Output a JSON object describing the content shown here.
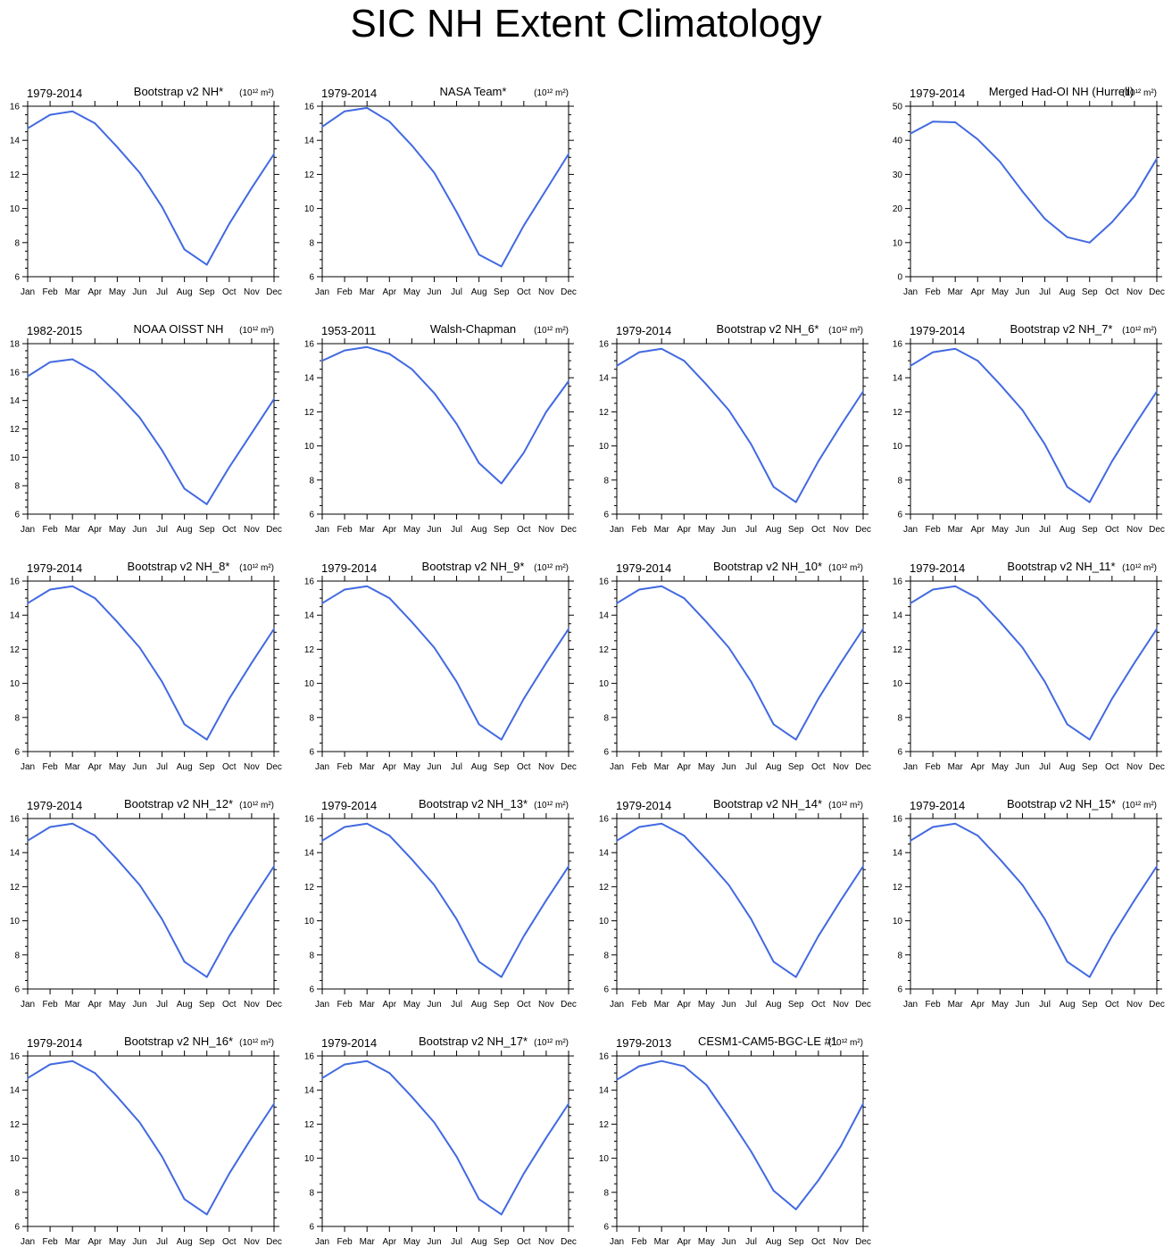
{
  "title": "SIC NH Extent Climatology",
  "style": {
    "line_color": "#4169e1",
    "axis_color": "#000000"
  },
  "chart_data": [
    {
      "type": "line",
      "left_label": "1979-2014",
      "center_label": "Bootstrap v2 NH*",
      "units_label": "(10¹² m²)",
      "categories": [
        "Jan",
        "Feb",
        "Mar",
        "Apr",
        "May",
        "Jun",
        "Jul",
        "Aug",
        "Sep",
        "Oct",
        "Nov",
        "Dec"
      ],
      "ylim": [
        6,
        16
      ],
      "yticks": [
        6,
        8,
        10,
        12,
        14,
        16
      ],
      "series": [
        {
          "values": [
            14.7,
            15.5,
            15.7,
            15.0,
            13.6,
            12.1,
            10.1,
            7.6,
            6.7,
            9.1,
            11.2,
            13.2
          ]
        }
      ]
    },
    {
      "type": "line",
      "left_label": "1979-2014",
      "center_label": "NASA Team*",
      "units_label": "(10¹² m²)",
      "categories": [
        "Jan",
        "Feb",
        "Mar",
        "Apr",
        "May",
        "Jun",
        "Jul",
        "Aug",
        "Sep",
        "Oct",
        "Nov",
        "Dec"
      ],
      "ylim": [
        6,
        16
      ],
      "yticks": [
        6,
        8,
        10,
        12,
        14,
        16
      ],
      "series": [
        {
          "values": [
            14.8,
            15.7,
            15.9,
            15.1,
            13.7,
            12.1,
            9.8,
            7.3,
            6.6,
            9.0,
            11.1,
            13.2
          ]
        }
      ]
    },
    {
      "type": "line",
      "left_label": "1979-2014",
      "center_label": "Merged Had-OI NH (Hurrell)",
      "units_label": "(10¹² m²)",
      "categories": [
        "Jan",
        "Feb",
        "Mar",
        "Apr",
        "May",
        "Jun",
        "Jul",
        "Aug",
        "Sep",
        "Oct",
        "Nov",
        "Dec"
      ],
      "ylim": [
        0,
        50
      ],
      "yticks": [
        0,
        10,
        20,
        30,
        40,
        50
      ],
      "series": [
        {
          "values": [
            42.0,
            45.5,
            45.3,
            40.3,
            33.7,
            25.0,
            17.0,
            11.6,
            10.0,
            16.0,
            23.6,
            34.6
          ]
        }
      ]
    },
    {
      "type": "line",
      "left_label": "1982-2015",
      "center_label": "NOAA OISST NH",
      "units_label": "(10¹² m²)",
      "categories": [
        "Jan",
        "Feb",
        "Mar",
        "Apr",
        "May",
        "Jun",
        "Jul",
        "Aug",
        "Sep",
        "Oct",
        "Nov",
        "Dec"
      ],
      "ylim": [
        6,
        18
      ],
      "yticks": [
        6,
        8,
        10,
        12,
        14,
        16,
        18
      ],
      "series": [
        {
          "values": [
            15.7,
            16.7,
            16.9,
            16.0,
            14.5,
            12.8,
            10.5,
            7.8,
            6.7,
            9.3,
            11.7,
            14.1
          ]
        }
      ]
    },
    {
      "type": "line",
      "left_label": "1953-2011",
      "center_label": "Walsh-Chapman",
      "units_label": "(10¹² m²)",
      "categories": [
        "Jan",
        "Feb",
        "Mar",
        "Apr",
        "May",
        "Jun",
        "Jul",
        "Aug",
        "Sep",
        "Oct",
        "Nov",
        "Dec"
      ],
      "ylim": [
        6,
        16
      ],
      "yticks": [
        6,
        8,
        10,
        12,
        14,
        16
      ],
      "series": [
        {
          "values": [
            15.0,
            15.6,
            15.8,
            15.4,
            14.5,
            13.1,
            11.3,
            9.0,
            7.8,
            9.6,
            12.0,
            13.8
          ]
        }
      ]
    },
    {
      "type": "line",
      "left_label": "1979-2014",
      "center_label": "Bootstrap v2 NH_6*",
      "units_label": "(10¹² m²)",
      "categories": [
        "Jan",
        "Feb",
        "Mar",
        "Apr",
        "May",
        "Jun",
        "Jul",
        "Aug",
        "Sep",
        "Oct",
        "Nov",
        "Dec"
      ],
      "ylim": [
        6,
        16
      ],
      "yticks": [
        6,
        8,
        10,
        12,
        14,
        16
      ],
      "series": [
        {
          "values": [
            14.7,
            15.5,
            15.7,
            15.0,
            13.6,
            12.1,
            10.1,
            7.6,
            6.7,
            9.1,
            11.2,
            13.2
          ]
        }
      ]
    },
    {
      "type": "line",
      "left_label": "1979-2014",
      "center_label": "Bootstrap v2 NH_7*",
      "units_label": "(10¹² m²)",
      "categories": [
        "Jan",
        "Feb",
        "Mar",
        "Apr",
        "May",
        "Jun",
        "Jul",
        "Aug",
        "Sep",
        "Oct",
        "Nov",
        "Dec"
      ],
      "ylim": [
        6,
        16
      ],
      "yticks": [
        6,
        8,
        10,
        12,
        14,
        16
      ],
      "series": [
        {
          "values": [
            14.7,
            15.5,
            15.7,
            15.0,
            13.6,
            12.1,
            10.1,
            7.6,
            6.7,
            9.1,
            11.2,
            13.2
          ]
        }
      ]
    },
    {
      "type": "line",
      "left_label": "1979-2014",
      "center_label": "Bootstrap v2 NH_8*",
      "units_label": "(10¹² m²)",
      "categories": [
        "Jan",
        "Feb",
        "Mar",
        "Apr",
        "May",
        "Jun",
        "Jul",
        "Aug",
        "Sep",
        "Oct",
        "Nov",
        "Dec"
      ],
      "ylim": [
        6,
        16
      ],
      "yticks": [
        6,
        8,
        10,
        12,
        14,
        16
      ],
      "series": [
        {
          "values": [
            14.7,
            15.5,
            15.7,
            15.0,
            13.6,
            12.1,
            10.1,
            7.6,
            6.7,
            9.1,
            11.2,
            13.2
          ]
        }
      ]
    },
    {
      "type": "line",
      "left_label": "1979-2014",
      "center_label": "Bootstrap v2 NH_9*",
      "units_label": "(10¹² m²)",
      "categories": [
        "Jan",
        "Feb",
        "Mar",
        "Apr",
        "May",
        "Jun",
        "Jul",
        "Aug",
        "Sep",
        "Oct",
        "Nov",
        "Dec"
      ],
      "ylim": [
        6,
        16
      ],
      "yticks": [
        6,
        8,
        10,
        12,
        14,
        16
      ],
      "series": [
        {
          "values": [
            14.7,
            15.5,
            15.7,
            15.0,
            13.6,
            12.1,
            10.1,
            7.6,
            6.7,
            9.1,
            11.2,
            13.2
          ]
        }
      ]
    },
    {
      "type": "line",
      "left_label": "1979-2014",
      "center_label": "Bootstrap v2 NH_10*",
      "units_label": "(10¹² m²)",
      "categories": [
        "Jan",
        "Feb",
        "Mar",
        "Apr",
        "May",
        "Jun",
        "Jul",
        "Aug",
        "Sep",
        "Oct",
        "Nov",
        "Dec"
      ],
      "ylim": [
        6,
        16
      ],
      "yticks": [
        6,
        8,
        10,
        12,
        14,
        16
      ],
      "series": [
        {
          "values": [
            14.7,
            15.5,
            15.7,
            15.0,
            13.6,
            12.1,
            10.1,
            7.6,
            6.7,
            9.1,
            11.2,
            13.2
          ]
        }
      ]
    },
    {
      "type": "line",
      "left_label": "1979-2014",
      "center_label": "Bootstrap v2 NH_11*",
      "units_label": "(10¹² m²)",
      "categories": [
        "Jan",
        "Feb",
        "Mar",
        "Apr",
        "May",
        "Jun",
        "Jul",
        "Aug",
        "Sep",
        "Oct",
        "Nov",
        "Dec"
      ],
      "ylim": [
        6,
        16
      ],
      "yticks": [
        6,
        8,
        10,
        12,
        14,
        16
      ],
      "series": [
        {
          "values": [
            14.7,
            15.5,
            15.7,
            15.0,
            13.6,
            12.1,
            10.1,
            7.6,
            6.7,
            9.1,
            11.2,
            13.2
          ]
        }
      ]
    },
    {
      "type": "line",
      "left_label": "1979-2014",
      "center_label": "Bootstrap v2 NH_12*",
      "units_label": "(10¹² m²)",
      "categories": [
        "Jan",
        "Feb",
        "Mar",
        "Apr",
        "May",
        "Jun",
        "Jul",
        "Aug",
        "Sep",
        "Oct",
        "Nov",
        "Dec"
      ],
      "ylim": [
        6,
        16
      ],
      "yticks": [
        6,
        8,
        10,
        12,
        14,
        16
      ],
      "series": [
        {
          "values": [
            14.7,
            15.5,
            15.7,
            15.0,
            13.6,
            12.1,
            10.1,
            7.6,
            6.7,
            9.1,
            11.2,
            13.2
          ]
        }
      ]
    },
    {
      "type": "line",
      "left_label": "1979-2014",
      "center_label": "Bootstrap v2 NH_13*",
      "units_label": "(10¹² m²)",
      "categories": [
        "Jan",
        "Feb",
        "Mar",
        "Apr",
        "May",
        "Jun",
        "Jul",
        "Aug",
        "Sep",
        "Oct",
        "Nov",
        "Dec"
      ],
      "ylim": [
        6,
        16
      ],
      "yticks": [
        6,
        8,
        10,
        12,
        14,
        16
      ],
      "series": [
        {
          "values": [
            14.7,
            15.5,
            15.7,
            15.0,
            13.6,
            12.1,
            10.1,
            7.6,
            6.7,
            9.1,
            11.2,
            13.2
          ]
        }
      ]
    },
    {
      "type": "line",
      "left_label": "1979-2014",
      "center_label": "Bootstrap v2 NH_14*",
      "units_label": "(10¹² m²)",
      "categories": [
        "Jan",
        "Feb",
        "Mar",
        "Apr",
        "May",
        "Jun",
        "Jul",
        "Aug",
        "Sep",
        "Oct",
        "Nov",
        "Dec"
      ],
      "ylim": [
        6,
        16
      ],
      "yticks": [
        6,
        8,
        10,
        12,
        14,
        16
      ],
      "series": [
        {
          "values": [
            14.7,
            15.5,
            15.7,
            15.0,
            13.6,
            12.1,
            10.1,
            7.6,
            6.7,
            9.1,
            11.2,
            13.2
          ]
        }
      ]
    },
    {
      "type": "line",
      "left_label": "1979-2014",
      "center_label": "Bootstrap v2 NH_15*",
      "units_label": "(10¹² m²)",
      "categories": [
        "Jan",
        "Feb",
        "Mar",
        "Apr",
        "May",
        "Jun",
        "Jul",
        "Aug",
        "Sep",
        "Oct",
        "Nov",
        "Dec"
      ],
      "ylim": [
        6,
        16
      ],
      "yticks": [
        6,
        8,
        10,
        12,
        14,
        16
      ],
      "series": [
        {
          "values": [
            14.7,
            15.5,
            15.7,
            15.0,
            13.6,
            12.1,
            10.1,
            7.6,
            6.7,
            9.1,
            11.2,
            13.2
          ]
        }
      ]
    },
    {
      "type": "line",
      "left_label": "1979-2014",
      "center_label": "Bootstrap v2 NH_16*",
      "units_label": "(10¹² m²)",
      "categories": [
        "Jan",
        "Feb",
        "Mar",
        "Apr",
        "May",
        "Jun",
        "Jul",
        "Aug",
        "Sep",
        "Oct",
        "Nov",
        "Dec"
      ],
      "ylim": [
        6,
        16
      ],
      "yticks": [
        6,
        8,
        10,
        12,
        14,
        16
      ],
      "series": [
        {
          "values": [
            14.7,
            15.5,
            15.7,
            15.0,
            13.6,
            12.1,
            10.1,
            7.6,
            6.7,
            9.1,
            11.2,
            13.2
          ]
        }
      ]
    },
    {
      "type": "line",
      "left_label": "1979-2014",
      "center_label": "Bootstrap v2 NH_17*",
      "units_label": "(10¹² m²)",
      "categories": [
        "Jan",
        "Feb",
        "Mar",
        "Apr",
        "May",
        "Jun",
        "Jul",
        "Aug",
        "Sep",
        "Oct",
        "Nov",
        "Dec"
      ],
      "ylim": [
        6,
        16
      ],
      "yticks": [
        6,
        8,
        10,
        12,
        14,
        16
      ],
      "series": [
        {
          "values": [
            14.7,
            15.5,
            15.7,
            15.0,
            13.6,
            12.1,
            10.1,
            7.6,
            6.7,
            9.1,
            11.2,
            13.2
          ]
        }
      ]
    },
    {
      "type": "line",
      "left_label": "1979-2013",
      "center_label": "CESM1-CAM5-BGC-LE #1",
      "units_label": "(10¹² m²)",
      "categories": [
        "Jan",
        "Feb",
        "Mar",
        "Apr",
        "May",
        "Jun",
        "Jul",
        "Aug",
        "Sep",
        "Oct",
        "Nov",
        "Dec"
      ],
      "ylim": [
        6,
        16
      ],
      "yticks": [
        6,
        8,
        10,
        12,
        14,
        16
      ],
      "series": [
        {
          "values": [
            14.6,
            15.4,
            15.7,
            15.4,
            14.3,
            12.4,
            10.4,
            8.1,
            7.0,
            8.7,
            10.7,
            13.2
          ]
        }
      ]
    }
  ]
}
